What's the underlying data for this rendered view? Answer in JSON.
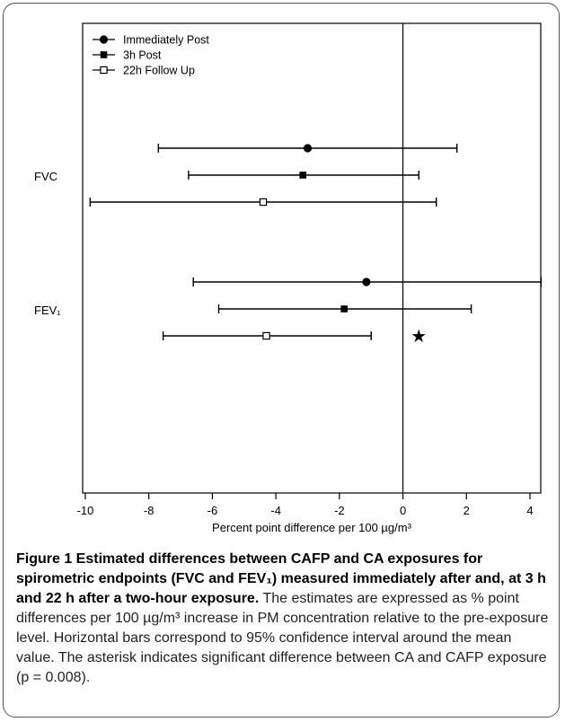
{
  "chart_data": {
    "type": "errorbar",
    "xlabel": "Percent point difference per 100 µg/m³",
    "xlim": [
      -10.3,
      5.0
    ],
    "xticks": [
      "-10",
      "-8",
      "-6",
      "-4",
      "-2",
      "0",
      "2",
      "4"
    ],
    "xtick_values": [
      -10,
      -8,
      -6,
      -4,
      -2,
      0,
      2,
      4
    ],
    "reference_line_x": 0,
    "categories": [
      "FVC",
      "FEV₁"
    ],
    "legend": {
      "placement": "top-left",
      "entries": [
        "Immediately Post",
        "3h Post",
        "22h Follow Up"
      ]
    },
    "series": [
      {
        "name": "Immediately Post",
        "marker": "filled-circle",
        "values": [
          {
            "category": "FVC",
            "estimate": -3.0,
            "ci_low": -7.7,
            "ci_high": 1.7
          },
          {
            "category": "FEV₁",
            "estimate": -1.15,
            "ci_low": -6.6,
            "ci_high": 4.35
          }
        ]
      },
      {
        "name": "3h Post",
        "marker": "filled-square",
        "values": [
          {
            "category": "FVC",
            "estimate": -3.15,
            "ci_low": -6.75,
            "ci_high": 0.5
          },
          {
            "category": "FEV₁",
            "estimate": -1.85,
            "ci_low": -5.8,
            "ci_high": 2.15
          }
        ]
      },
      {
        "name": "22h Follow Up",
        "marker": "open-square",
        "values": [
          {
            "category": "FVC",
            "estimate": -4.4,
            "ci_low": -9.85,
            "ci_high": 1.05
          },
          {
            "category": "FEV₁",
            "estimate": -4.3,
            "ci_low": -7.55,
            "ci_high": -1.0
          }
        ]
      }
    ],
    "annotations": [
      {
        "symbol": "★",
        "x": 0.5,
        "category": "FEV₁",
        "series": "22h Follow Up"
      }
    ]
  },
  "caption": {
    "bold": "Figure 1 Estimated differences between CAFP and CA exposures for spirometric endpoints (FVC and FEV₁) measured immediately after and, at 3 h and 22 h after a two-hour exposure.",
    "text": "The estimates are expressed as % point differences per 100 µg/m³ increase in PM concentration relative to the pre-exposure level. Horizontal bars correspond to 95% confidence interval around the mean value. The asterisk indicates significant difference between CA and CAFP exposure (p = 0.008)."
  }
}
